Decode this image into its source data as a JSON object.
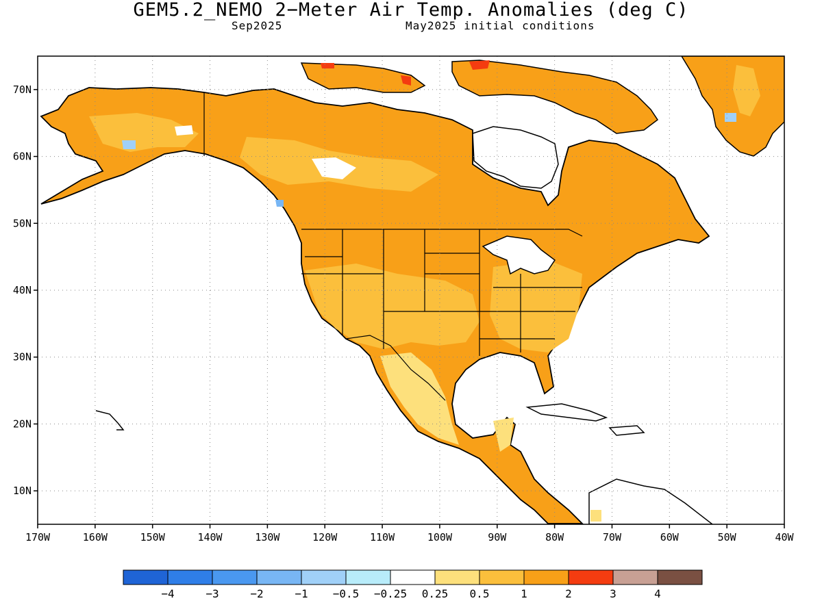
{
  "title": "GEM5.2_NEMO 2−Meter Air Temp. Anomalies (deg C)",
  "subtitle_left": "Sep2025",
  "subtitle_right": "May2025 initial conditions",
  "map": {
    "lon_range": [
      -170,
      -40
    ],
    "lat_range": [
      5,
      75
    ],
    "lon_ticks": [
      "170W",
      "160W",
      "150W",
      "140W",
      "130W",
      "120W",
      "110W",
      "100W",
      "90W",
      "80W",
      "70W",
      "60W",
      "50W",
      "40W"
    ],
    "lat_ticks": [
      "10N",
      "20N",
      "30N",
      "40N",
      "50N",
      "60N",
      "70N"
    ],
    "grid_lines": true
  },
  "colorbar": {
    "colors": [
      "#1f64d6",
      "#2f7ee8",
      "#4a98f0",
      "#78b6f4",
      "#a0d0f8",
      "#b8ecfa",
      "#ffffff",
      "#fde07c",
      "#fbbf3c",
      "#f8a018",
      "#f43c10",
      "#c8a094",
      "#7a5042"
    ],
    "labels": [
      "−4",
      "−3",
      "−2",
      "−1",
      "−0.5",
      "−0.25",
      "0.25",
      "0.5",
      "1",
      "2",
      "3",
      "4"
    ]
  },
  "colors": {
    "anomaly_1_2": "#f8a018",
    "anomaly_05_1": "#fbbf3c",
    "anomaly_025_05": "#fde07c",
    "anomaly_2_3": "#f43c10",
    "anomaly_neg": "#a0d0f8"
  }
}
